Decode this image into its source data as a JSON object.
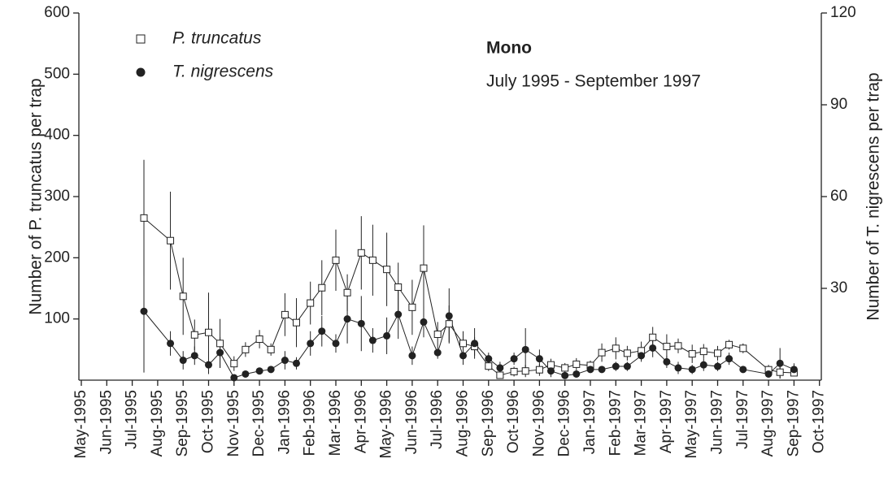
{
  "chart_data": {
    "type": "line",
    "title": "Mono",
    "subtitle": "July 1995 - September 1997",
    "ylabel": "Number of P. truncatus per trap",
    "y2label": "Number of T. nigrescens per trap",
    "xlim": [
      0,
      29
    ],
    "xticks": [
      {
        "value": 0,
        "label": "May-1995"
      },
      {
        "value": 1,
        "label": "Jun-1995"
      },
      {
        "value": 2,
        "label": "Jul-1995"
      },
      {
        "value": 3,
        "label": "Aug-1995"
      },
      {
        "value": 4,
        "label": "Sep-1995"
      },
      {
        "value": 5,
        "label": "Oct-1995"
      },
      {
        "value": 6,
        "label": "Nov-1995"
      },
      {
        "value": 7,
        "label": "Dec-1995"
      },
      {
        "value": 8,
        "label": "Jan-1996"
      },
      {
        "value": 9,
        "label": "Feb-1996"
      },
      {
        "value": 10,
        "label": "Mar-1996"
      },
      {
        "value": 11,
        "label": "Apr-1996"
      },
      {
        "value": 12,
        "label": "May-1996"
      },
      {
        "value": 13,
        "label": "Jun-1996"
      },
      {
        "value": 14,
        "label": "Jul-1996"
      },
      {
        "value": 15,
        "label": "Aug-1996"
      },
      {
        "value": 16,
        "label": "Sep-1996"
      },
      {
        "value": 17,
        "label": "Oct-1996"
      },
      {
        "value": 18,
        "label": "Nov-1996"
      },
      {
        "value": 19,
        "label": "Dec-1996"
      },
      {
        "value": 20,
        "label": "Jan-1997"
      },
      {
        "value": 21,
        "label": "Feb-1997"
      },
      {
        "value": 22,
        "label": "Mar-1997"
      },
      {
        "value": 23,
        "label": "Apr-1997"
      },
      {
        "value": 24,
        "label": "May-1997"
      },
      {
        "value": 25,
        "label": "Jun-1997"
      },
      {
        "value": 26,
        "label": "Jul-1997"
      },
      {
        "value": 27,
        "label": "Aug-1997"
      },
      {
        "value": 28,
        "label": "Sep-1997"
      },
      {
        "value": 29,
        "label": "Oct-1997"
      }
    ],
    "ylim": [
      0,
      600
    ],
    "yticks": [
      100,
      200,
      300,
      400,
      500,
      600
    ],
    "y2lim": [
      0,
      120
    ],
    "y2ticks": [
      30,
      60,
      90,
      120
    ],
    "x": [
      2.46,
      3.5,
      4.0,
      4.45,
      5.0,
      5.45,
      6.0,
      6.45,
      7.0,
      7.45,
      8.0,
      8.45,
      9.0,
      9.45,
      10.0,
      10.45,
      11.0,
      11.45,
      12.0,
      12.45,
      13.0,
      13.45,
      14.0,
      14.45,
      15.0,
      15.45,
      16.0,
      16.45,
      17.0,
      17.45,
      18.0,
      18.45,
      19.0,
      19.45,
      20.0,
      20.45,
      21.0,
      21.45,
      22.0,
      22.45,
      23.0,
      23.45,
      24.0,
      24.45,
      25.0,
      25.45,
      26.0,
      27.0,
      27.45,
      28.0
    ],
    "series": [
      {
        "name": "P. truncatus",
        "color": "#222222",
        "marker": "square",
        "axis": "y",
        "values": [
          265,
          228,
          137,
          74,
          78,
          60,
          27,
          50,
          67,
          50,
          107,
          94,
          126,
          151,
          196,
          143,
          208,
          196,
          181,
          152,
          119,
          183,
          75,
          92,
          60,
          55,
          23,
          8,
          14,
          15,
          17,
          25,
          20,
          26,
          24,
          45,
          52,
          44,
          48,
          70,
          55,
          56,
          43,
          47,
          44,
          58,
          52,
          17,
          13,
          12
        ],
        "errors": [
          95,
          80,
          63,
          25,
          65,
          40,
          12,
          12,
          15,
          10,
          35,
          40,
          35,
          45,
          50,
          30,
          60,
          58,
          60,
          40,
          45,
          70,
          20,
          30,
          20,
          15,
          8,
          5,
          8,
          10,
          10,
          10,
          8,
          10,
          8,
          15,
          18,
          12,
          15,
          17,
          20,
          12,
          15,
          12,
          12,
          8,
          8,
          8,
          10,
          5
        ]
      },
      {
        "name": "T. nigrescens",
        "color": "#222222",
        "marker": "circle",
        "axis": "y2",
        "values": [
          22.5,
          12,
          6.5,
          8,
          5,
          9,
          0.8,
          2,
          3,
          3.5,
          6.5,
          5.5,
          12,
          16,
          12,
          20,
          18.5,
          13,
          14.5,
          21.5,
          8,
          19,
          9,
          21,
          8,
          12,
          7,
          4,
          7,
          10,
          7,
          3,
          1.5,
          2,
          3.5,
          3.5,
          4.5,
          4.5,
          8,
          10.5,
          6,
          4,
          3.5,
          5,
          4.5,
          7,
          3.5,
          2,
          5.5,
          3.5
        ],
        "errors": [
          20,
          4,
          3,
          3,
          3,
          5,
          1,
          1,
          1,
          1,
          3,
          2,
          4,
          5,
          3,
          8,
          9,
          4,
          6,
          8,
          3,
          5,
          2,
          9,
          3,
          5,
          2,
          2,
          2,
          7,
          3,
          2,
          1,
          1,
          1,
          1,
          1.5,
          1.5,
          2,
          3,
          2,
          2,
          1.5,
          2,
          1.5,
          2,
          1,
          1,
          5,
          2
        ]
      }
    ]
  }
}
